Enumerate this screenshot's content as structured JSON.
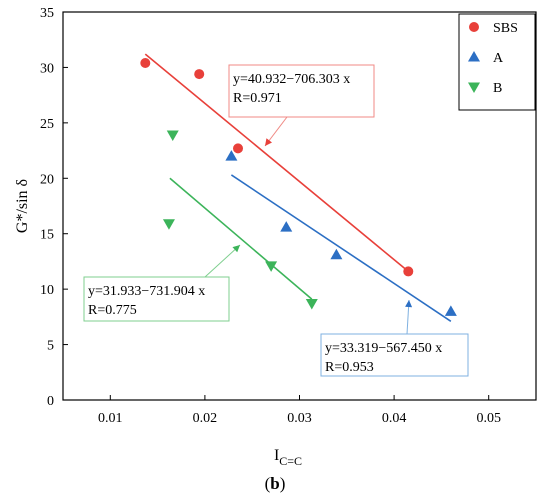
{
  "chart_data": {
    "type": "scatter",
    "xlabel": {
      "main": "I",
      "sub": "C=C"
    },
    "ylabel": "G*/sin δ",
    "xlim": [
      0.005,
      0.055
    ],
    "ylim": [
      0,
      35
    ],
    "xticks": [
      0.01,
      0.02,
      0.03,
      0.04,
      0.05
    ],
    "yticks": [
      0,
      5,
      10,
      15,
      20,
      25,
      30,
      35
    ],
    "xtick_labels": [
      "0.01",
      "0.02",
      "0.03",
      "0.04",
      "0.05"
    ],
    "ytick_labels": [
      "0",
      "5",
      "10",
      "15",
      "20",
      "25",
      "30",
      "35"
    ],
    "grid": false,
    "legend_position": "top-right",
    "caption": {
      "open": "(",
      "bold": "b",
      "close": ")"
    },
    "series": [
      {
        "name": "SBS",
        "marker": "circle",
        "color": "#e8403a",
        "points": [
          [
            0.0137,
            30.4
          ],
          [
            0.0194,
            29.4
          ],
          [
            0.0235,
            22.7
          ],
          [
            0.0415,
            11.6
          ]
        ],
        "fit": {
          "x": [
            0.0137,
            0.0415
          ],
          "y": [
            31.2,
            11.6
          ]
        },
        "equation": "y=40.932−706.303 x",
        "r_text": "R=0.971",
        "box_color": "#f08a85"
      },
      {
        "name": "A",
        "marker": "triangle-up",
        "color": "#2c6fc4",
        "points": [
          [
            0.0228,
            22.0
          ],
          [
            0.0286,
            15.6
          ],
          [
            0.0339,
            13.1
          ],
          [
            0.046,
            8.0
          ]
        ],
        "fit": {
          "x": [
            0.0228,
            0.046
          ],
          "y": [
            20.3,
            7.1
          ]
        },
        "equation": "y=33.319−567.450 x",
        "r_text": "R=0.953",
        "box_color": "#7fb0e0"
      },
      {
        "name": "B",
        "marker": "triangle-down",
        "color": "#3cb45a",
        "points": [
          [
            0.0166,
            23.9
          ],
          [
            0.0162,
            15.9
          ],
          [
            0.027,
            12.1
          ],
          [
            0.0313,
            8.7
          ]
        ],
        "fit": {
          "x": [
            0.0163,
            0.0313
          ],
          "y": [
            20.0,
            9.1
          ]
        },
        "equation": "y=31.933−731.904 x",
        "r_text": "R=0.775",
        "box_color": "#7fcf8f"
      }
    ]
  }
}
